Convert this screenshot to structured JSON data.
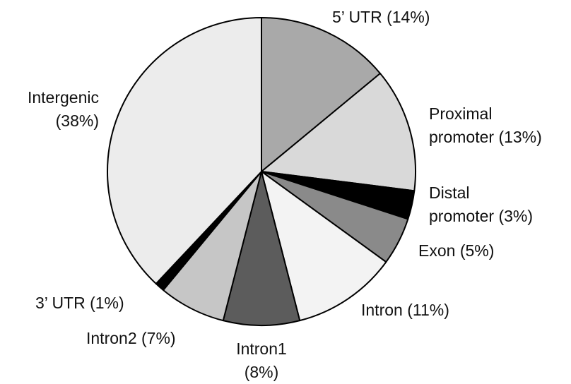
{
  "chart_data": {
    "type": "pie",
    "categories": [
      "5’ UTR",
      "Proximal promoter",
      "Distal promoter",
      "Exon",
      "Intron",
      "Intron1",
      "Intron2",
      "3’ UTR",
      "Intergenic"
    ],
    "values": [
      14,
      13,
      3,
      5,
      11,
      8,
      7,
      1,
      38
    ],
    "value_labels": [
      "(14%)",
      "(13%)",
      "(3%)",
      "(5%)",
      "(11%)",
      "(8%)",
      "(7%)",
      "(1%)",
      "(38%)"
    ],
    "colors": [
      "#a9a9a9",
      "#d9d9d9",
      "#000000",
      "#8a8a8a",
      "#f3f3f3",
      "#5c5c5c",
      "#c6c6c6",
      "#000000",
      "#ececec"
    ]
  }
}
